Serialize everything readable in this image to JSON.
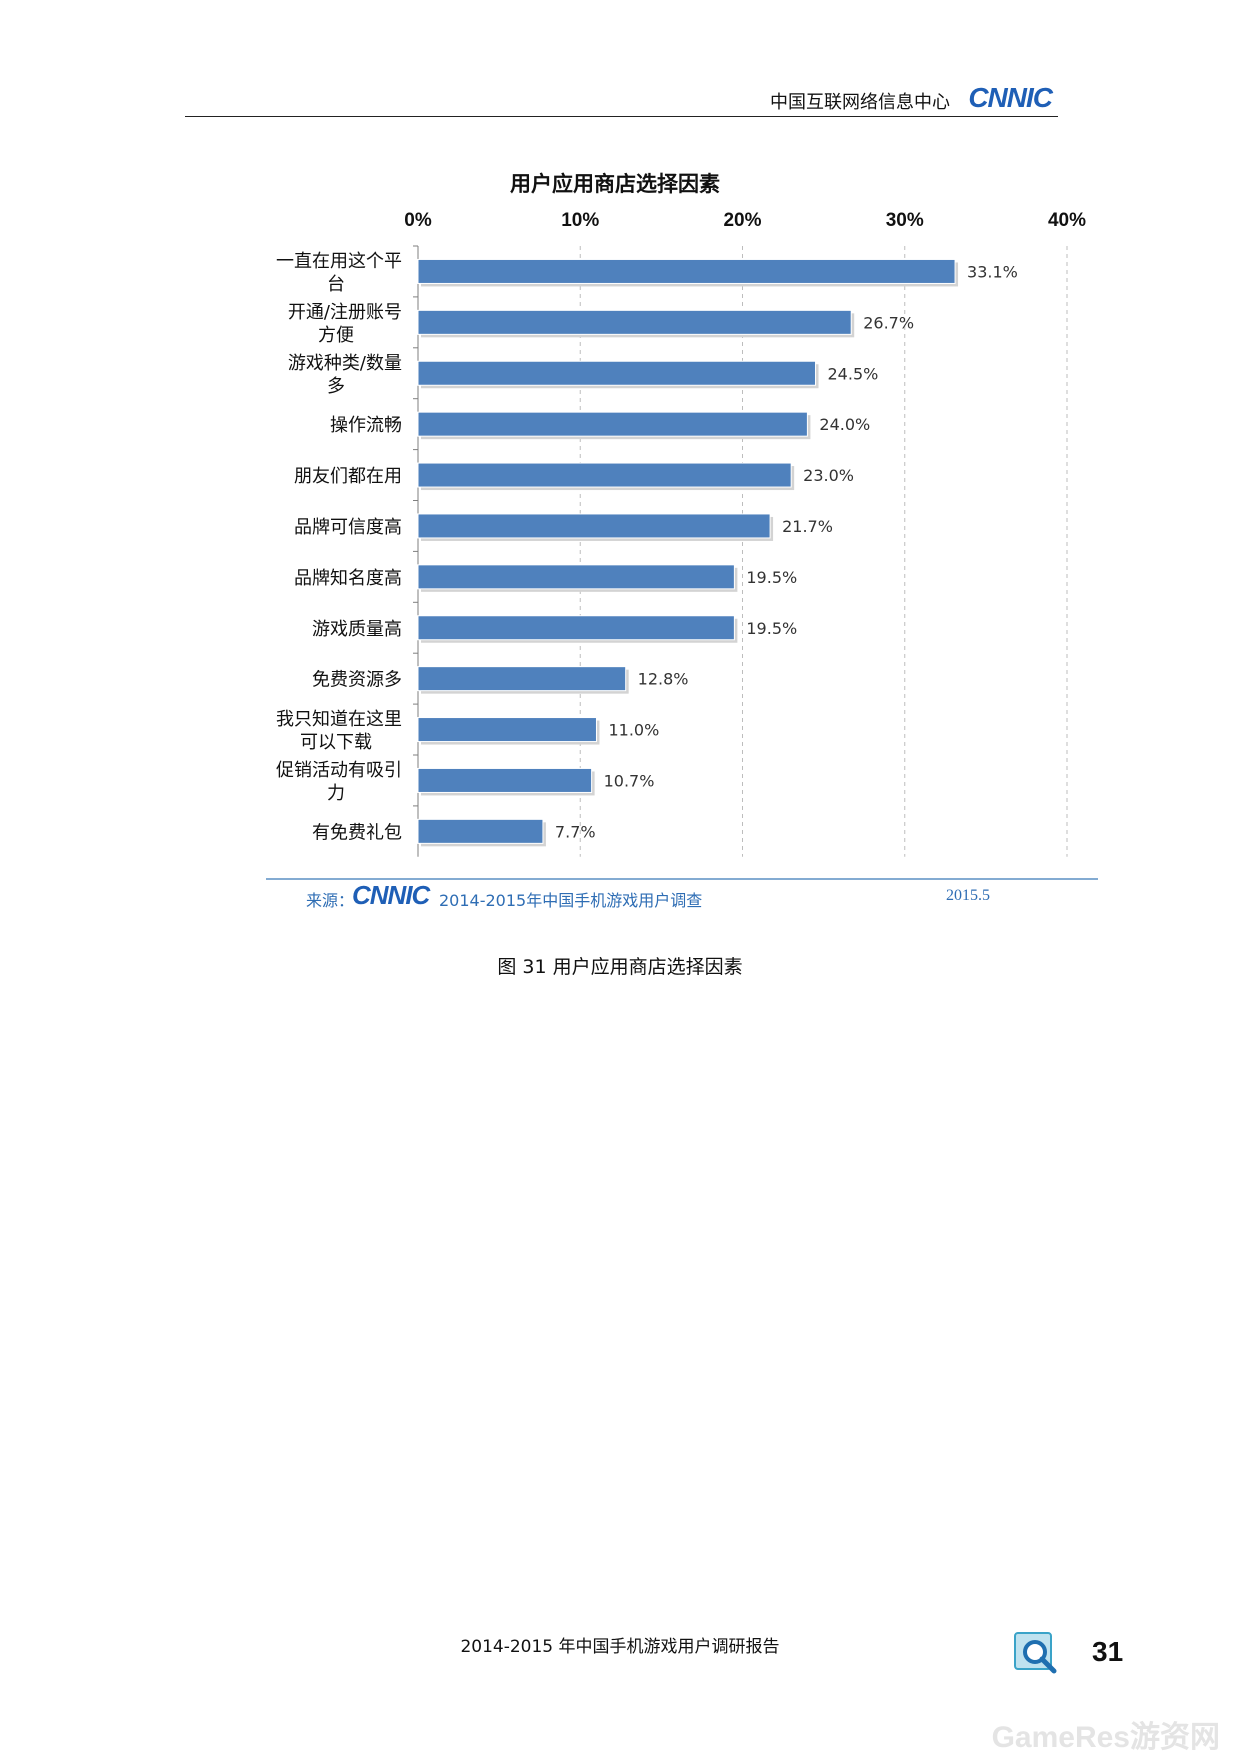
{
  "header": {
    "org": "中国互联网络信息中心",
    "logo": "CNNIC"
  },
  "chart_data": {
    "type": "bar",
    "orientation": "horizontal",
    "title": "用户应用商店选择因素",
    "categories": [
      "一直在用这个平台",
      "开通/注册账号方便",
      "游戏种类/数量多",
      "操作流畅",
      "朋友们都在用",
      "品牌可信度高",
      "品牌知名度高",
      "游戏质量高",
      "免费资源多",
      "我只知道在这里可以下载",
      "促销活动有吸引力",
      "有免费礼包"
    ],
    "category_lines": [
      [
        "一直在用这个平",
        "台"
      ],
      [
        "开通/注册账号",
        "方便"
      ],
      [
        "游戏种类/数量",
        "多"
      ],
      [
        "操作流畅"
      ],
      [
        "朋友们都在用"
      ],
      [
        "品牌可信度高"
      ],
      [
        "品牌知名度高"
      ],
      [
        "游戏质量高"
      ],
      [
        "免费资源多"
      ],
      [
        "我只知道在这里",
        "可以下载"
      ],
      [
        "促销活动有吸引",
        "力"
      ],
      [
        "有免费礼包"
      ]
    ],
    "values": [
      33.1,
      26.7,
      24.5,
      24.0,
      23.0,
      21.7,
      19.5,
      19.5,
      12.8,
      11.0,
      10.7,
      7.7
    ],
    "value_labels": [
      "33.1%",
      "26.7%",
      "24.5%",
      "24.0%",
      "23.0%",
      "21.7%",
      "19.5%",
      "19.5%",
      "12.8%",
      "11.0%",
      "10.7%",
      "7.7%"
    ],
    "xlim": [
      0,
      40
    ],
    "xticks": [
      "0%",
      "10%",
      "20%",
      "30%",
      "40%"
    ],
    "xaxis_position": "top",
    "grid": "vertical dashed",
    "bar_color": "#4f81bd"
  },
  "source": {
    "label": "来源：",
    "logo": "CNNIC",
    "text": "2014-2015年中国手机游戏用户调查",
    "date": "2015.5"
  },
  "caption": "图 31 用户应用商店选择因素",
  "footer": {
    "title": "2014-2015 年中国手机游戏用户调研报告",
    "page": "31"
  },
  "watermark": "GameRes游资网"
}
